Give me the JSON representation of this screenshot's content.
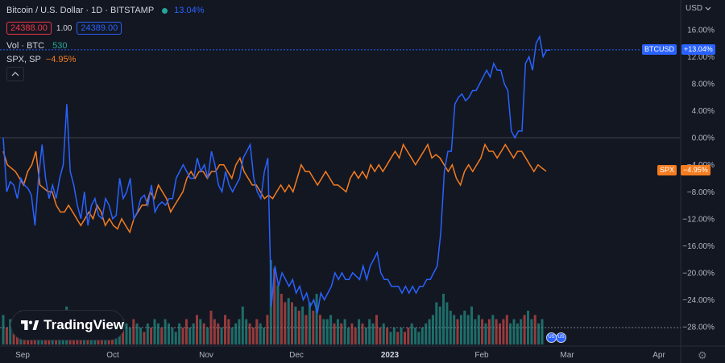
{
  "legend": {
    "symbol_title": "Bitcoin / U.S. Dollar · 1D · BITSTAMP",
    "change_pct": "13.04%",
    "bid": "24388.00",
    "spread": "1.00",
    "ask": "24389.00",
    "volume_label": "Vol · BTC",
    "volume_value": "530",
    "compare_label": "SPX, SP",
    "compare_change": "−4.95%",
    "collapse_icon": "chevron-up-icon"
  },
  "price_axis": {
    "currency": "USD"
  },
  "tags": {
    "btc_label": "BTCUSD",
    "btc_value": "+13.04%",
    "spx_label": "SPX",
    "spx_value": "−4.95%"
  },
  "logo_text": "TradingView",
  "colors": {
    "background": "#131722",
    "btc": "#2962ff",
    "spx": "#f57c1f",
    "vol_up": "#26a69a",
    "vol_down": "#ef5350"
  },
  "chart_data": {
    "type": "line",
    "x_ticks": [
      "Sep",
      "Oct",
      "Nov",
      "Dec",
      "2023",
      "Feb",
      "Mar",
      "Apr"
    ],
    "y_ticks": [
      "16.00%",
      "12.00%",
      "8.00%",
      "4.00%",
      "0.00%",
      "−4.00%",
      "−8.00%",
      "−12.00%",
      "−16.00%",
      "−20.00%",
      "−24.00%",
      "−28.00%"
    ],
    "ylim": [
      -28,
      16
    ],
    "series": [
      {
        "name": "BTCUSD",
        "values": [
          0,
          -8,
          -6.5,
          -7,
          -9,
          -6,
          -7,
          -7.5,
          -8.5,
          -13,
          -6,
          -1,
          -6,
          -9,
          -7,
          -9,
          -6,
          -4,
          5,
          -5,
          -7,
          -10,
          -12,
          -8,
          -13,
          -10,
          -9,
          -11.5,
          -12,
          -9,
          -10,
          -12,
          -11.5,
          -6,
          -9,
          -8,
          -6,
          -12,
          -11,
          -9,
          -8.5,
          -10,
          -7,
          -11,
          -10,
          -9.5,
          -10,
          -9,
          -9,
          -6,
          -5,
          -4,
          -5,
          -6,
          -6,
          -3,
          -5,
          -4,
          -6,
          -2,
          -4,
          -7,
          -8,
          -5,
          -7,
          -8,
          -7,
          -6,
          -3,
          -2,
          -1,
          -6,
          -8,
          -9,
          -5,
          -3,
          -25,
          -19,
          -22,
          -20,
          -21,
          -22,
          -21,
          -23,
          -22,
          -24,
          -23,
          -25,
          -24,
          -26,
          -23,
          -24,
          -23,
          -22,
          -20,
          -21,
          -20,
          -21,
          -21,
          -20,
          -20.5,
          -21,
          -19,
          -21,
          -19,
          -18,
          -17,
          -20,
          -21,
          -21,
          -22,
          -22,
          -22,
          -23,
          -22,
          -23,
          -22,
          -23,
          -22,
          -22,
          -21,
          -21,
          -20,
          -19,
          -14,
          -5,
          -2,
          -2,
          5,
          6,
          6.5,
          5.5,
          6,
          7,
          7,
          8,
          9,
          10,
          9,
          11,
          10,
          10,
          8,
          7,
          1,
          0,
          1,
          1,
          11,
          12,
          10,
          14,
          15,
          12,
          13,
          13
        ],
        "last": 13.04
      },
      {
        "name": "SPX",
        "values": [
          -2,
          -4,
          -4.5,
          -5,
          -6,
          -7,
          -5,
          -4,
          -2,
          -7,
          -7.5,
          -8,
          -8,
          -10,
          -11,
          -11,
          -10,
          -11,
          -12,
          -13,
          -12,
          -11,
          -12,
          -10,
          -11,
          -13,
          -12,
          -13,
          -13.5,
          -12,
          -13,
          -14,
          -12,
          -11,
          -10,
          -10,
          -8,
          -9,
          -7,
          -8,
          -9,
          -11,
          -10,
          -9,
          -8,
          -6,
          -5,
          -6,
          -5,
          -5,
          -6,
          -5,
          -5,
          -4,
          -4,
          -5,
          -6,
          -4,
          -3,
          -5,
          -6,
          -7,
          -7,
          -8,
          -9,
          -8.5,
          -9,
          -8,
          -7,
          -8,
          -7,
          -8,
          -6,
          -4,
          -5,
          -5,
          -6,
          -7,
          -6,
          -5,
          -6,
          -7,
          -7,
          -7.5,
          -8,
          -6,
          -5,
          -6,
          -5,
          -6,
          -4,
          -5,
          -4,
          -5,
          -4,
          -3,
          -2,
          -3,
          -1,
          -2,
          -3,
          -4,
          -3,
          -2,
          -1,
          -3,
          -2.5,
          -3,
          -4,
          -5,
          -4,
          -6,
          -7,
          -5,
          -4,
          -5,
          -4,
          -3,
          -1,
          -2,
          -2,
          -3,
          -2,
          -1,
          -2,
          -3,
          -2,
          -2,
          -3,
          -4,
          -5,
          -4,
          -4.5,
          -4.95
        ],
        "last": -4.95
      }
    ],
    "volume": [
      0.35,
      0.2,
      0.3,
      0.15,
      0.25,
      0.4,
      0.3,
      0.2,
      0.3,
      0.2,
      0.15,
      0.3,
      0.25,
      0.35,
      0.2,
      0.3,
      0.25,
      0.2,
      0.45,
      0.3,
      0.25,
      0.2,
      0.3,
      0.25,
      0.2,
      0.15,
      0.25,
      0.3,
      0.2,
      0.25,
      0.3,
      0.2,
      0.15,
      0.35,
      0.3,
      0.25,
      0.2,
      0.3,
      0.25,
      0.2,
      0.15,
      0.25,
      0.2,
      0.3,
      0.25,
      0.2,
      0.3,
      0.25,
      0.2,
      0.15,
      0.25,
      0.2,
      0.3,
      0.2,
      0.25,
      0.35,
      0.3,
      0.25,
      0.2,
      0.4,
      0.3,
      0.25,
      0.2,
      0.35,
      0.3,
      0.2,
      0.25,
      0.3,
      0.45,
      0.3,
      0.25,
      0.2,
      0.3,
      0.25,
      0.2,
      0.35,
      1.0,
      0.9,
      0.7,
      0.6,
      0.5,
      0.55,
      0.5,
      0.45,
      0.4,
      0.45,
      0.35,
      0.5,
      0.4,
      0.6,
      0.35,
      0.3,
      0.3,
      0.35,
      0.25,
      0.3,
      0.25,
      0.3,
      0.2,
      0.25,
      0.2,
      0.3,
      0.25,
      0.2,
      0.3,
      0.25,
      0.35,
      0.2,
      0.25,
      0.2,
      0.15,
      0.2,
      0.15,
      0.2,
      0.15,
      0.2,
      0.25,
      0.2,
      0.15,
      0.2,
      0.25,
      0.3,
      0.35,
      0.5,
      0.45,
      0.6,
      0.5,
      0.4,
      0.35,
      0.3,
      0.35,
      0.4,
      0.35,
      0.45,
      0.3,
      0.35,
      0.3,
      0.25,
      0.3,
      0.35,
      0.3,
      0.25,
      0.3,
      0.35,
      0.25,
      0.3,
      0.25,
      0.3,
      0.35,
      0.4,
      0.3,
      0.35,
      0.25,
      0.3
    ]
  }
}
